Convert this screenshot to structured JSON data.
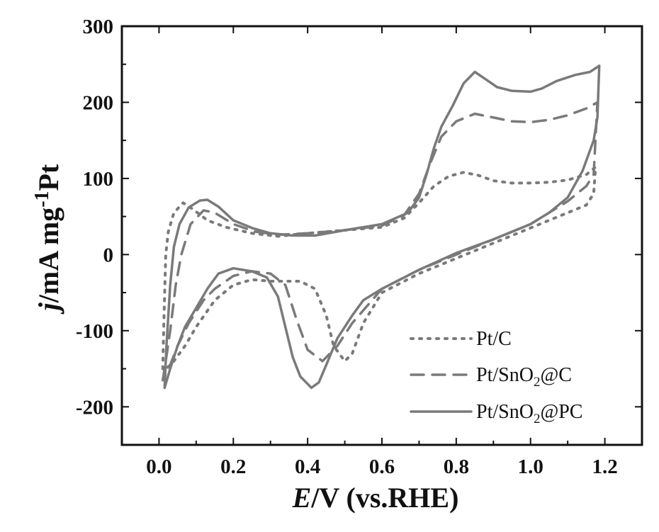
{
  "chart_data": {
    "type": "line",
    "title": "",
    "xlabel": {
      "italic": "E",
      "rest": "/V (vs.RHE)"
    },
    "ylabel": {
      "italic": "j",
      "rest": "/mA mg",
      "sup": "-1",
      "tail": "Pt"
    },
    "xlim": [
      -0.1,
      1.3
    ],
    "ylim": [
      -250,
      300
    ],
    "xticks": [
      0.0,
      0.2,
      0.4,
      0.6,
      0.8,
      1.0,
      1.2
    ],
    "xtick_labels": [
      "0.0",
      "0.2",
      "0.4",
      "0.6",
      "0.8",
      "1.0",
      "1.2"
    ],
    "yticks": [
      -200,
      -100,
      0,
      100,
      200,
      300
    ],
    "ytick_labels": [
      "-200",
      "-100",
      "0",
      "100",
      "200",
      "300"
    ],
    "grid": false,
    "legend_position": "bottom-right",
    "legend_entries": [
      {
        "label": "Pt/C",
        "sub": "",
        "tail": ""
      },
      {
        "label": "Pt/SnO",
        "sub": "2",
        "tail": "@C"
      },
      {
        "label": "Pt/SnO",
        "sub": "2",
        "tail": "@PC"
      }
    ],
    "line_color": "#7a7a7a",
    "series": [
      {
        "name": "Pt/C",
        "style": "dotted",
        "points": [
          [
            0.01,
            -150
          ],
          [
            0.013,
            -90
          ],
          [
            0.018,
            0
          ],
          [
            0.025,
            30
          ],
          [
            0.04,
            55
          ],
          [
            0.065,
            68
          ],
          [
            0.09,
            60
          ],
          [
            0.13,
            45
          ],
          [
            0.18,
            36
          ],
          [
            0.25,
            28
          ],
          [
            0.32,
            24
          ],
          [
            0.4,
            28
          ],
          [
            0.5,
            32
          ],
          [
            0.6,
            36
          ],
          [
            0.66,
            48
          ],
          [
            0.7,
            68
          ],
          [
            0.74,
            90
          ],
          [
            0.78,
            103
          ],
          [
            0.82,
            108
          ],
          [
            0.86,
            104
          ],
          [
            0.9,
            97
          ],
          [
            0.95,
            94
          ],
          [
            1.0,
            94
          ],
          [
            1.05,
            95
          ],
          [
            1.1,
            98
          ],
          [
            1.15,
            105
          ],
          [
            1.175,
            115
          ],
          [
            1.17,
            80
          ],
          [
            1.15,
            65
          ],
          [
            1.1,
            55
          ],
          [
            1.05,
            45
          ],
          [
            1.0,
            35
          ],
          [
            0.9,
            15
          ],
          [
            0.8,
            -5
          ],
          [
            0.7,
            -25
          ],
          [
            0.6,
            -50
          ],
          [
            0.55,
            -90
          ],
          [
            0.52,
            -130
          ],
          [
            0.5,
            -140
          ],
          [
            0.47,
            -120
          ],
          [
            0.45,
            -80
          ],
          [
            0.42,
            -45
          ],
          [
            0.38,
            -35
          ],
          [
            0.3,
            -35
          ],
          [
            0.25,
            -33
          ],
          [
            0.2,
            -40
          ],
          [
            0.15,
            -60
          ],
          [
            0.1,
            -95
          ],
          [
            0.07,
            -120
          ],
          [
            0.04,
            -140
          ],
          [
            0.02,
            -150
          ],
          [
            0.01,
            -150
          ]
        ]
      },
      {
        "name": "Pt/SnO2@C",
        "style": "dashed",
        "points": [
          [
            0.01,
            -165
          ],
          [
            0.018,
            -140
          ],
          [
            0.03,
            -100
          ],
          [
            0.045,
            -40
          ],
          [
            0.06,
            0
          ],
          [
            0.085,
            40
          ],
          [
            0.12,
            58
          ],
          [
            0.15,
            55
          ],
          [
            0.2,
            40
          ],
          [
            0.26,
            30
          ],
          [
            0.32,
            26
          ],
          [
            0.4,
            28
          ],
          [
            0.5,
            32
          ],
          [
            0.6,
            38
          ],
          [
            0.66,
            52
          ],
          [
            0.7,
            80
          ],
          [
            0.73,
            120
          ],
          [
            0.76,
            155
          ],
          [
            0.8,
            175
          ],
          [
            0.85,
            185
          ],
          [
            0.9,
            180
          ],
          [
            0.95,
            175
          ],
          [
            1.0,
            174
          ],
          [
            1.05,
            177
          ],
          [
            1.1,
            183
          ],
          [
            1.15,
            192
          ],
          [
            1.18,
            200
          ],
          [
            1.17,
            105
          ],
          [
            1.15,
            90
          ],
          [
            1.1,
            70
          ],
          [
            1.05,
            55
          ],
          [
            1.0,
            40
          ],
          [
            0.9,
            20
          ],
          [
            0.8,
            0
          ],
          [
            0.7,
            -20
          ],
          [
            0.6,
            -45
          ],
          [
            0.52,
            -90
          ],
          [
            0.48,
            -120
          ],
          [
            0.44,
            -140
          ],
          [
            0.4,
            -125
          ],
          [
            0.37,
            -85
          ],
          [
            0.34,
            -40
          ],
          [
            0.3,
            -25
          ],
          [
            0.25,
            -22
          ],
          [
            0.2,
            -28
          ],
          [
            0.15,
            -45
          ],
          [
            0.12,
            -60
          ],
          [
            0.08,
            -90
          ],
          [
            0.05,
            -120
          ],
          [
            0.03,
            -145
          ],
          [
            0.01,
            -165
          ]
        ]
      },
      {
        "name": "Pt/SnO2@PC",
        "style": "solid",
        "points": [
          [
            0.015,
            -175
          ],
          [
            0.02,
            -120
          ],
          [
            0.03,
            -40
          ],
          [
            0.04,
            10
          ],
          [
            0.055,
            40
          ],
          [
            0.08,
            62
          ],
          [
            0.11,
            71
          ],
          [
            0.13,
            72
          ],
          [
            0.16,
            63
          ],
          [
            0.2,
            45
          ],
          [
            0.25,
            35
          ],
          [
            0.3,
            28
          ],
          [
            0.36,
            25
          ],
          [
            0.42,
            25
          ],
          [
            0.5,
            32
          ],
          [
            0.6,
            40
          ],
          [
            0.67,
            55
          ],
          [
            0.7,
            75
          ],
          [
            0.72,
            105
          ],
          [
            0.74,
            140
          ],
          [
            0.76,
            168
          ],
          [
            0.79,
            195
          ],
          [
            0.82,
            225
          ],
          [
            0.85,
            240
          ],
          [
            0.88,
            230
          ],
          [
            0.91,
            220
          ],
          [
            0.95,
            215
          ],
          [
            1.0,
            214
          ],
          [
            1.03,
            218
          ],
          [
            1.07,
            228
          ],
          [
            1.12,
            236
          ],
          [
            1.16,
            240
          ],
          [
            1.185,
            248
          ],
          [
            1.18,
            180
          ],
          [
            1.17,
            150
          ],
          [
            1.14,
            110
          ],
          [
            1.1,
            75
          ],
          [
            1.05,
            55
          ],
          [
            1.0,
            40
          ],
          [
            0.9,
            20
          ],
          [
            0.8,
            2
          ],
          [
            0.7,
            -20
          ],
          [
            0.6,
            -45
          ],
          [
            0.55,
            -60
          ],
          [
            0.52,
            -80
          ],
          [
            0.48,
            -110
          ],
          [
            0.45,
            -145
          ],
          [
            0.43,
            -168
          ],
          [
            0.41,
            -175
          ],
          [
            0.38,
            -160
          ],
          [
            0.36,
            -135
          ],
          [
            0.34,
            -95
          ],
          [
            0.32,
            -55
          ],
          [
            0.29,
            -30
          ],
          [
            0.25,
            -22
          ],
          [
            0.2,
            -18
          ],
          [
            0.16,
            -25
          ],
          [
            0.13,
            -45
          ],
          [
            0.1,
            -70
          ],
          [
            0.07,
            -95
          ],
          [
            0.05,
            -120
          ],
          [
            0.03,
            -150
          ],
          [
            0.015,
            -175
          ]
        ]
      }
    ]
  }
}
